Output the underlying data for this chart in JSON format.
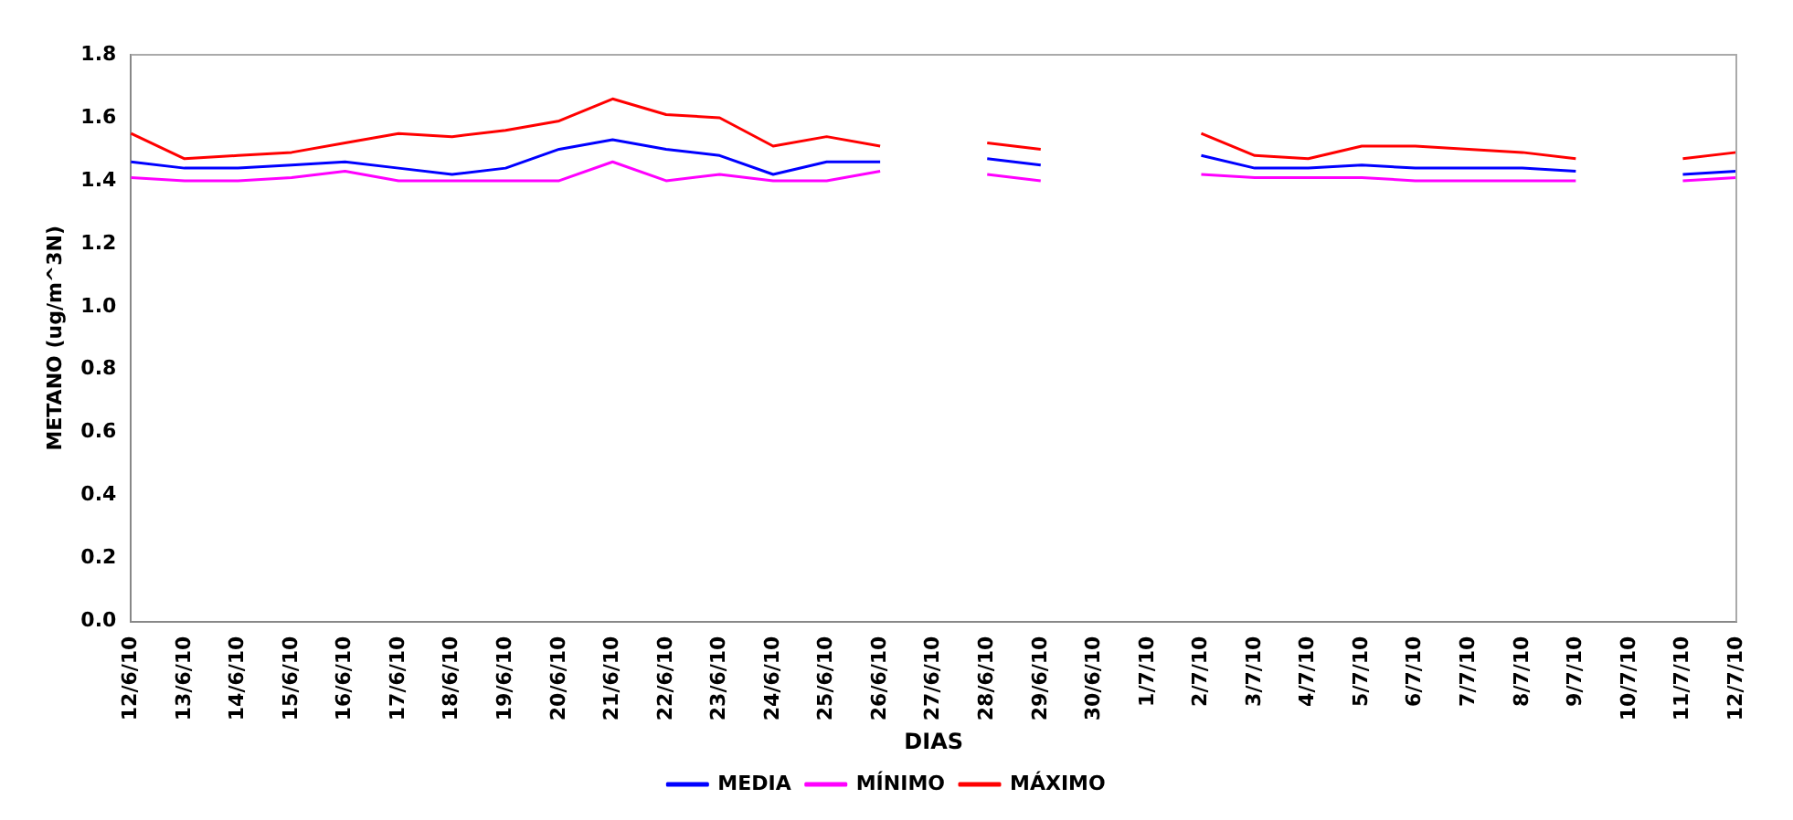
{
  "chart_data": {
    "type": "line",
    "xlabel": "DIAS",
    "ylabel": "METANO (ug/m^3N)",
    "categories": [
      "12/6/10",
      "13/6/10",
      "14/6/10",
      "15/6/10",
      "16/6/10",
      "17/6/10",
      "18/6/10",
      "19/6/10",
      "20/6/10",
      "21/6/10",
      "22/6/10",
      "23/6/10",
      "24/6/10",
      "25/6/10",
      "26/6/10",
      "27/6/10",
      "28/6/10",
      "29/6/10",
      "30/6/10",
      "1/7/10",
      "2/7/10",
      "3/7/10",
      "4/7/10",
      "5/7/10",
      "6/7/10",
      "7/7/10",
      "8/7/10",
      "9/7/10",
      "10/7/10",
      "11/7/10",
      "12/7/10"
    ],
    "series": [
      {
        "name": "MEDIA",
        "color": "#0000ff",
        "values": [
          1.46,
          1.44,
          1.44,
          1.45,
          1.46,
          1.44,
          1.42,
          1.44,
          1.5,
          1.53,
          1.5,
          1.48,
          1.42,
          1.46,
          1.46,
          null,
          1.47,
          1.45,
          null,
          null,
          1.48,
          1.44,
          1.44,
          1.45,
          1.44,
          1.44,
          1.44,
          1.43,
          null,
          1.42,
          1.43
        ]
      },
      {
        "name": "MÍNIMO",
        "color": "#ff00ff",
        "values": [
          1.41,
          1.4,
          1.4,
          1.41,
          1.43,
          1.4,
          1.4,
          1.4,
          1.4,
          1.46,
          1.4,
          1.42,
          1.4,
          1.4,
          1.43,
          null,
          1.42,
          1.4,
          null,
          null,
          1.42,
          1.41,
          1.41,
          1.41,
          1.4,
          1.4,
          1.4,
          1.4,
          null,
          1.4,
          1.41
        ]
      },
      {
        "name": "MÁXIMO",
        "color": "#ff0000",
        "values": [
          1.55,
          1.47,
          1.48,
          1.49,
          1.52,
          1.55,
          1.54,
          1.56,
          1.59,
          1.66,
          1.61,
          1.6,
          1.51,
          1.54,
          1.51,
          null,
          1.52,
          1.5,
          null,
          null,
          1.55,
          1.48,
          1.47,
          1.51,
          1.51,
          1.5,
          1.49,
          1.47,
          null,
          1.47,
          1.49
        ]
      }
    ],
    "ylim": [
      0,
      1.8
    ],
    "yticks": [
      {
        "value": 0,
        "label": "0.0"
      },
      {
        "value": 0.2,
        "label": "0.2"
      },
      {
        "value": 0.4,
        "label": "0.4"
      },
      {
        "value": 0.6,
        "label": "0.6"
      },
      {
        "value": 0.8,
        "label": "0.8"
      },
      {
        "value": 1.0,
        "label": "1.0"
      },
      {
        "value": 1.2,
        "label": "1.2"
      },
      {
        "value": 1.4,
        "label": "1.4"
      },
      {
        "value": 1.6,
        "label": "1.6"
      },
      {
        "value": 1.8,
        "label": "1.8"
      }
    ],
    "grid": false,
    "legend": "bottom",
    "marker": "none",
    "line_style": "solid"
  }
}
